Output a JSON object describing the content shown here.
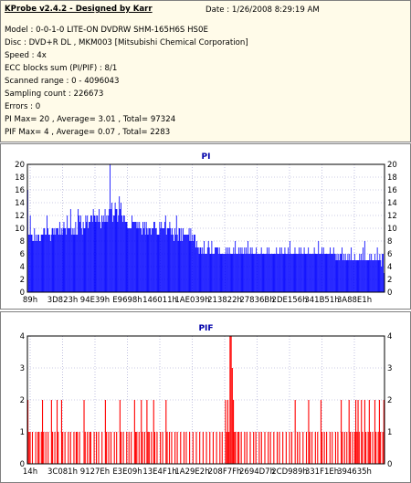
{
  "header": {
    "title": "KProbe v2.4.2 - Designed by Karr",
    "date": "Date : 1/26/2008 8:29:19 AM",
    "lines": [
      "Model : 0-0-1-0 LITE-ON DVDRW SHM-165H6S HS0E",
      "Disc : DVD+R DL , MKM003 [Mitsubishi Chemical Corporation]",
      "Speed : 4x",
      "ECC blocks sum (PI/PIF) : 8/1",
      "Scanned range : 0 - 4096043",
      "Sampling count : 226673",
      "Errors : 0",
      "PI Max= 20 , Average= 3.01 , Total= 97324",
      "PIF Max= 4 , Average= 0.07 , Total= 2283"
    ]
  },
  "colors": {
    "pi_bars": "#0000ff",
    "pif_bars": "#ff0000",
    "plot_bg": "#ffffff",
    "grid": "#9999cc",
    "info_bg": "#fffbe9"
  },
  "chart_data": [
    {
      "type": "bar",
      "title": "PI",
      "xlabel": "",
      "ylabel": "",
      "ylim": [
        0,
        20
      ],
      "yticks": [
        0,
        2,
        4,
        6,
        8,
        10,
        12,
        14,
        16,
        18,
        20
      ],
      "xtick_labels": [
        "89h",
        "3D823h",
        "94E39h",
        "E9698h",
        "146011h",
        "1AE039h",
        "213822h",
        "27836Bh",
        "2DE156h",
        "341B51h",
        "3A88E1h"
      ],
      "grid": true,
      "series": [
        {
          "values": [
            16,
            9,
            9,
            12,
            9,
            9,
            8,
            8,
            10,
            8,
            9,
            8,
            9,
            9,
            8,
            8,
            9,
            9,
            9,
            10,
            10,
            9,
            9,
            12,
            10,
            9,
            9,
            8,
            9,
            10,
            10,
            9,
            10,
            9,
            10,
            10,
            10,
            9,
            11,
            9,
            10,
            9,
            10,
            11,
            10,
            10,
            9,
            12,
            10,
            10,
            10,
            13,
            9,
            10,
            9,
            10,
            9,
            11,
            9,
            9,
            13,
            12,
            11,
            12,
            10,
            9,
            11,
            10,
            10,
            12,
            11,
            12,
            10,
            11,
            11,
            12,
            12,
            11,
            13,
            12,
            12,
            11,
            12,
            12,
            11,
            13,
            11,
            10,
            12,
            11,
            12,
            11,
            13,
            11,
            12,
            11,
            12,
            13,
            20,
            13,
            14,
            11,
            12,
            12,
            14,
            13,
            13,
            11,
            12,
            15,
            13,
            14,
            12,
            11,
            12,
            12,
            11,
            11,
            11,
            10,
            10,
            10,
            10,
            10,
            12,
            11,
            11,
            11,
            11,
            11,
            10,
            11,
            10,
            11,
            10,
            10,
            9,
            11,
            10,
            11,
            9,
            11,
            10,
            9,
            10,
            10,
            10,
            9,
            10,
            10,
            11,
            11,
            10,
            10,
            9,
            9,
            9,
            11,
            10,
            11,
            10,
            10,
            10,
            11,
            12,
            9,
            10,
            10,
            10,
            11,
            10,
            9,
            10,
            9,
            8,
            10,
            9,
            12,
            9,
            8,
            10,
            10,
            8,
            10,
            8,
            10,
            9,
            9,
            9,
            9,
            9,
            9,
            10,
            8,
            10,
            8,
            9,
            8,
            9,
            9,
            7,
            8,
            7,
            7,
            6,
            7,
            7,
            6,
            7,
            6,
            8,
            6,
            6,
            6,
            7,
            8,
            7,
            6,
            6,
            8,
            6,
            6,
            6,
            7,
            7,
            7,
            7,
            6,
            7,
            6,
            6,
            6,
            6,
            6,
            6,
            6,
            7,
            6,
            7,
            6,
            7,
            6,
            6,
            6,
            6,
            7,
            6,
            8,
            6,
            6,
            6,
            7,
            6,
            7,
            6,
            7,
            6,
            6,
            7,
            6,
            7,
            6,
            8,
            6,
            6,
            7,
            6,
            7,
            6,
            6,
            6,
            6,
            7,
            6,
            6,
            6,
            6,
            6,
            7,
            6,
            6,
            6,
            6,
            6,
            6,
            7,
            6,
            7,
            6,
            6,
            6,
            6,
            6,
            6,
            6,
            6,
            7,
            6,
            6,
            6,
            7,
            6,
            7,
            6,
            6,
            6,
            7,
            6,
            6,
            6,
            7,
            6,
            8,
            6,
            6,
            6,
            6,
            6,
            7,
            6,
            6,
            6,
            6,
            7,
            6,
            7,
            6,
            6,
            6,
            7,
            6,
            6,
            6,
            6,
            7,
            6,
            6,
            6,
            6,
            6,
            6,
            7,
            6,
            6,
            6,
            6,
            8,
            6,
            6,
            6,
            7,
            6,
            7,
            6,
            6,
            6,
            6,
            6,
            6,
            6,
            7,
            6,
            6,
            6,
            7,
            6,
            6,
            5,
            6,
            5,
            6,
            5,
            6,
            6,
            7,
            5,
            6,
            5,
            6,
            5,
            5,
            6,
            5,
            6,
            5,
            7,
            5,
            5,
            5,
            6,
            5,
            5,
            5,
            5,
            5,
            6,
            5,
            6,
            5,
            7,
            5,
            8,
            5,
            5,
            5,
            5,
            5,
            6,
            5,
            6,
            5,
            5,
            5,
            6,
            5,
            5,
            7,
            5,
            5,
            6,
            5,
            4,
            6,
            6,
            3
          ]
        }
      ]
    },
    {
      "type": "bar",
      "title": "PIF",
      "xlabel": "",
      "ylabel": "",
      "ylim": [
        0,
        4
      ],
      "yticks": [
        0,
        1,
        2,
        3,
        4
      ],
      "xtick_labels": [
        "14h",
        "3C081h",
        "9127Eh",
        "E3E09h",
        "13E4F1h",
        "1A29E2h",
        "208F7Fh",
        "2694D7h",
        "2CD989h",
        "331F1Eh",
        "394635h"
      ],
      "grid": true,
      "series": [
        {
          "values": [
            2,
            1,
            1,
            0,
            1,
            0,
            0,
            1,
            0,
            1,
            1,
            0,
            1,
            2,
            1,
            0,
            1,
            0,
            1,
            0,
            0,
            2,
            1,
            0,
            1,
            0,
            2,
            1,
            0,
            0,
            2,
            1,
            0,
            1,
            0,
            0,
            1,
            0,
            1,
            0,
            0,
            1,
            0,
            1,
            1,
            0,
            1,
            0,
            0,
            0,
            2,
            1,
            0,
            1,
            0,
            1,
            1,
            0,
            0,
            1,
            0,
            1,
            0,
            1,
            0,
            0,
            1,
            0,
            0,
            2,
            1,
            0,
            1,
            0,
            1,
            0,
            0,
            1,
            0,
            1,
            0,
            0,
            2,
            1,
            0,
            1,
            0,
            0,
            1,
            0,
            1,
            0,
            1,
            0,
            0,
            2,
            1,
            1,
            0,
            1,
            0,
            2,
            1,
            0,
            1,
            0,
            2,
            1,
            1,
            0,
            1,
            0,
            2,
            1,
            0,
            1,
            0,
            0,
            1,
            0,
            1,
            0,
            0,
            2,
            1,
            0,
            1,
            0,
            1,
            0,
            0,
            1,
            0,
            1,
            0,
            0,
            1,
            0,
            0,
            1,
            0,
            1,
            0,
            0,
            1,
            0,
            0,
            1,
            0,
            0,
            1,
            0,
            0,
            1,
            0,
            0,
            1,
            0,
            0,
            1,
            0,
            0,
            1,
            0,
            0,
            1,
            0,
            0,
            1,
            0,
            0,
            1,
            0,
            1,
            0,
            0,
            2,
            1,
            2,
            1,
            4,
            4,
            3,
            2,
            1,
            1,
            0,
            1,
            1,
            0,
            1,
            0,
            0,
            1,
            0,
            1,
            0,
            0,
            1,
            0,
            0,
            1,
            0,
            1,
            0,
            0,
            1,
            0,
            1,
            0,
            0,
            1,
            0,
            0,
            1,
            0,
            1,
            0,
            0,
            1,
            0,
            0,
            1,
            0,
            1,
            0,
            0,
            1,
            0,
            0,
            1,
            0,
            0,
            1,
            0,
            1,
            0,
            0,
            2,
            0,
            1,
            0,
            1,
            0,
            0,
            1,
            0,
            0,
            1,
            0,
            2,
            1,
            0,
            1,
            0,
            0,
            1,
            0,
            1,
            0,
            0,
            2,
            1,
            0,
            1,
            0,
            1,
            0,
            0,
            1,
            0,
            1,
            0,
            0,
            1,
            0,
            1,
            0,
            0,
            2,
            1,
            0,
            1,
            0,
            1,
            0,
            2,
            1,
            0,
            1,
            0,
            1,
            2,
            1,
            2,
            1,
            0,
            2,
            1,
            0,
            2,
            1,
            0,
            1,
            2,
            1,
            0,
            1,
            0,
            2,
            1,
            0,
            1,
            2,
            1,
            0,
            1,
            2
          ]
        }
      ]
    }
  ]
}
